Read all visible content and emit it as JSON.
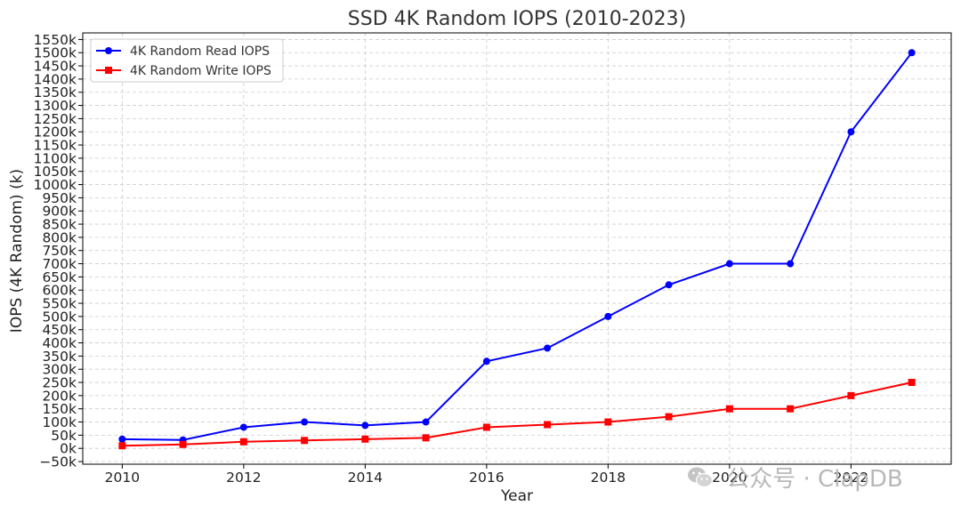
{
  "chart_data": {
    "type": "line",
    "title": "SSD 4K Random IOPS (2010-2023)",
    "xlabel": "Year",
    "ylabel": "IOPS (4K Random) (k)",
    "x": [
      2010,
      2011,
      2012,
      2013,
      2014,
      2015,
      2016,
      2017,
      2018,
      2019,
      2020,
      2021,
      2022,
      2023
    ],
    "xlim": [
      2009.35,
      2023.65
    ],
    "ylim": [
      -60,
      1575
    ],
    "x_ticks": [
      2010,
      2012,
      2014,
      2016,
      2018,
      2020,
      2022
    ],
    "y_ticks": [
      -50,
      0,
      50,
      100,
      150,
      200,
      250,
      300,
      350,
      400,
      450,
      500,
      550,
      600,
      650,
      700,
      750,
      800,
      850,
      900,
      950,
      1000,
      1050,
      1100,
      1150,
      1200,
      1250,
      1300,
      1350,
      1400,
      1450,
      1500,
      1550
    ],
    "y_tick_suffix": "k",
    "grid": true,
    "legend_position": "top-left",
    "series": [
      {
        "name": "4K Random Read IOPS",
        "marker": "circle",
        "color": "#0000ff",
        "values": [
          35,
          32,
          80,
          100,
          87,
          100,
          330,
          380,
          500,
          620,
          700,
          700,
          1200,
          1500
        ]
      },
      {
        "name": "4K Random Write IOPS",
        "marker": "square",
        "color": "#ff0000",
        "values": [
          10,
          15,
          25,
          30,
          35,
          40,
          80,
          90,
          100,
          120,
          150,
          150,
          200,
          250
        ]
      }
    ]
  },
  "watermark": {
    "icon": "wechat-icon",
    "text": "公众号 · ClapDB"
  }
}
